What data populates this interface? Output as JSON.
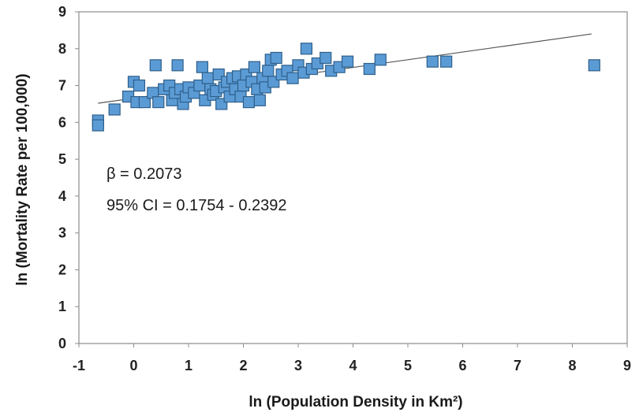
{
  "chart_data": {
    "type": "scatter",
    "xlabel": "ln (Population Density in Km²)",
    "ylabel": "ln (Mortality Rate per 100,000)",
    "xlim": [
      -1,
      9
    ],
    "ylim": [
      0,
      9
    ],
    "x_ticks": [
      "-1",
      "0",
      "1",
      "2",
      "3",
      "4",
      "5",
      "6",
      "7",
      "8",
      "9"
    ],
    "y_ticks": [
      "0",
      "1",
      "2",
      "3",
      "4",
      "5",
      "6",
      "7",
      "8",
      "9"
    ],
    "grid": false,
    "marker_color": "#5b9bd5",
    "marker_edge_color": "#2e5f8a",
    "annotations": {
      "beta": "β = 0.2073",
      "ci": "95% CI = 0.1754 - 0.2392"
    },
    "trendline": {
      "x": [
        -0.65,
        8.35
      ],
      "y": [
        6.52,
        8.4
      ]
    },
    "series": [
      {
        "points": [
          [
            -0.65,
            6.05
          ],
          [
            -0.65,
            5.92
          ],
          [
            -0.35,
            6.35
          ],
          [
            -0.1,
            6.7
          ],
          [
            0.0,
            7.1
          ],
          [
            0.05,
            6.55
          ],
          [
            0.1,
            7.0
          ],
          [
            0.2,
            6.55
          ],
          [
            0.35,
            6.8
          ],
          [
            0.4,
            7.55
          ],
          [
            0.45,
            6.55
          ],
          [
            0.55,
            6.9
          ],
          [
            0.65,
            7.0
          ],
          [
            0.7,
            6.6
          ],
          [
            0.75,
            6.8
          ],
          [
            0.8,
            7.55
          ],
          [
            0.85,
            6.9
          ],
          [
            0.9,
            6.5
          ],
          [
            0.95,
            6.7
          ],
          [
            1.0,
            6.95
          ],
          [
            1.1,
            6.8
          ],
          [
            1.2,
            7.0
          ],
          [
            1.25,
            7.5
          ],
          [
            1.3,
            6.6
          ],
          [
            1.35,
            7.2
          ],
          [
            1.4,
            6.9
          ],
          [
            1.45,
            6.75
          ],
          [
            1.5,
            6.85
          ],
          [
            1.55,
            7.3
          ],
          [
            1.6,
            6.5
          ],
          [
            1.65,
            6.95
          ],
          [
            1.7,
            7.1
          ],
          [
            1.75,
            6.7
          ],
          [
            1.8,
            7.2
          ],
          [
            1.85,
            6.9
          ],
          [
            1.9,
            7.25
          ],
          [
            1.95,
            6.7
          ],
          [
            2.0,
            7.0
          ],
          [
            2.05,
            7.3
          ],
          [
            2.1,
            6.55
          ],
          [
            2.15,
            7.1
          ],
          [
            2.2,
            7.5
          ],
          [
            2.25,
            6.9
          ],
          [
            2.3,
            6.6
          ],
          [
            2.35,
            7.2
          ],
          [
            2.4,
            6.95
          ],
          [
            2.45,
            7.4
          ],
          [
            2.5,
            7.7
          ],
          [
            2.55,
            7.1
          ],
          [
            2.6,
            7.75
          ],
          [
            2.7,
            7.3
          ],
          [
            2.8,
            7.4
          ],
          [
            2.9,
            7.2
          ],
          [
            3.0,
            7.55
          ],
          [
            3.1,
            7.35
          ],
          [
            3.15,
            8.0
          ],
          [
            3.25,
            7.45
          ],
          [
            3.35,
            7.6
          ],
          [
            3.5,
            7.75
          ],
          [
            3.6,
            7.4
          ],
          [
            3.75,
            7.5
          ],
          [
            3.9,
            7.65
          ],
          [
            4.3,
            7.45
          ],
          [
            4.5,
            7.7
          ],
          [
            5.45,
            7.65
          ],
          [
            5.7,
            7.65
          ],
          [
            8.4,
            7.55
          ]
        ]
      }
    ]
  }
}
